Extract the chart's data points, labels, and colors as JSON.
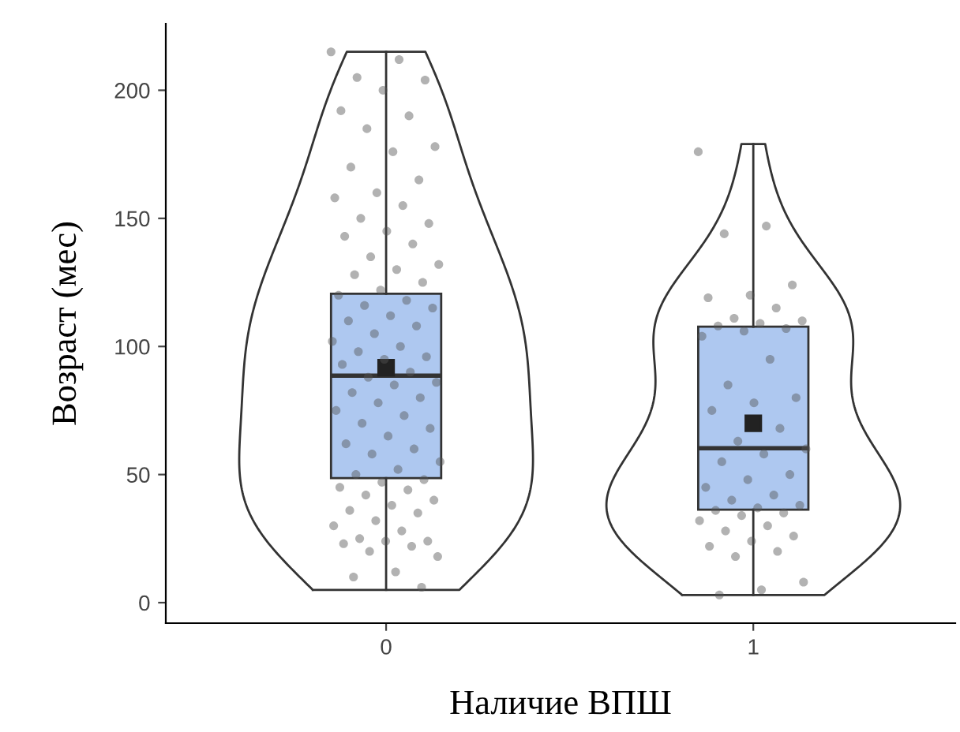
{
  "chart_data": {
    "type": "box",
    "xlabel": "Наличие ВПШ",
    "ylabel": "Возраст (мес)",
    "categories": [
      "0",
      "1"
    ],
    "boxes": [
      {
        "low": 5,
        "q1": 48.6,
        "median": 88.6,
        "q3": 120.6,
        "high": 215,
        "mean": 91.7
      },
      {
        "low": 3,
        "q1": 36.3,
        "median": 60.3,
        "q3": 107.7,
        "high": 179,
        "mean": 70
      }
    ],
    "color": "#aec8f0",
    "series": [
      {
        "type": "scatter",
        "color": "#555555",
        "x": [
          "0",
          "0",
          "0",
          "0",
          "0",
          "0",
          "0",
          "0",
          "0",
          "0",
          "0",
          "0",
          "0",
          "0",
          "0",
          "0",
          "0",
          "0",
          "0",
          "0",
          "0",
          "0",
          "0",
          "0",
          "0",
          "0",
          "0",
          "0",
          "0",
          "0",
          "0",
          "0",
          "0",
          "0",
          "0",
          "0",
          "0",
          "0",
          "0",
          "0",
          "0",
          "0",
          "0",
          "0",
          "0",
          "0",
          "0",
          "0",
          "0",
          "0",
          "0",
          "0",
          "0",
          "0",
          "0",
          "0",
          "0",
          "0",
          "0",
          "0",
          "0",
          "0",
          "0",
          "0",
          "0",
          "0",
          "0",
          "0",
          "0",
          "0",
          "0",
          "0",
          "0",
          "0",
          "0",
          "0",
          "0",
          "0",
          "0",
          "0"
        ],
        "values": [
          215,
          212,
          205,
          204,
          200,
          192,
          190,
          185,
          178,
          176,
          170,
          165,
          160,
          158,
          155,
          150,
          148,
          145,
          143,
          140,
          135,
          132,
          130,
          128,
          125,
          122,
          120,
          118,
          116,
          115,
          112,
          110,
          108,
          105,
          102,
          100,
          98,
          96,
          95,
          93,
          90,
          88,
          86,
          85,
          82,
          80,
          78,
          75,
          73,
          70,
          68,
          65,
          62,
          60,
          58,
          55,
          52,
          50,
          48,
          47,
          45,
          44,
          42,
          40,
          38,
          36,
          35,
          32,
          30,
          28,
          25,
          24,
          24,
          23,
          22,
          20,
          18,
          12,
          10,
          6
        ]
      },
      {
        "type": "scatter",
        "color": "#555555",
        "x": [
          "1",
          "1",
          "1",
          "1",
          "1",
          "1",
          "1",
          "1",
          "1",
          "1",
          "1",
          "1",
          "1",
          "1",
          "1",
          "1",
          "1",
          "1",
          "1",
          "1",
          "1",
          "1",
          "1",
          "1",
          "1",
          "1",
          "1",
          "1",
          "1",
          "1",
          "1",
          "1",
          "1",
          "1",
          "1",
          "1",
          "1",
          "1",
          "1",
          "1",
          "1",
          "1",
          "1",
          "1",
          "1"
        ],
        "values": [
          176,
          147,
          144,
          124,
          120,
          119,
          115,
          111,
          110,
          109,
          108,
          107,
          106,
          104,
          95,
          85,
          80,
          78,
          75,
          68,
          63,
          60,
          58,
          55,
          50,
          48,
          45,
          42,
          40,
          38,
          37,
          36,
          35,
          34,
          32,
          30,
          28,
          26,
          24,
          22,
          20,
          18,
          8,
          5,
          3
        ]
      }
    ],
    "ylim": [
      -8,
      226
    ],
    "yticks": [
      0,
      50,
      100,
      150,
      200
    ],
    "grid": false,
    "legend": false,
    "marker": "circle"
  }
}
